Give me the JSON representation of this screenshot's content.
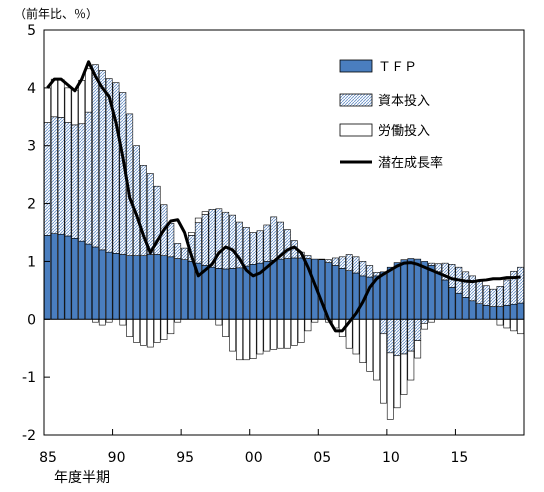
{
  "chart_data": {
    "type": "bar",
    "stacked": true,
    "unit_label": "（前年比、％）",
    "xlabel": "年度半期",
    "ylim": [
      -2,
      5
    ],
    "y_ticks": [
      "5",
      "4",
      "3",
      "2",
      "1",
      "0",
      "-1",
      "-2"
    ],
    "x_ticks": [
      {
        "label": "85",
        "period": 0
      },
      {
        "label": "90",
        "period": 10
      },
      {
        "label": "95",
        "period": 20
      },
      {
        "label": "00",
        "period": 30
      },
      {
        "label": "05",
        "period": 40
      },
      {
        "label": "10",
        "period": 50
      },
      {
        "label": "15",
        "period": 60
      }
    ],
    "legend_position": "top-right",
    "colors": {
      "tfp": "#4a7ebf",
      "capital": "#b8cde6",
      "labor": "#ffffff",
      "line": "#000000"
    },
    "series": [
      {
        "name": "ＴＦＰ",
        "key": "tfp",
        "values": [
          1.45,
          1.48,
          1.47,
          1.44,
          1.4,
          1.35,
          1.3,
          1.25,
          1.2,
          1.16,
          1.14,
          1.12,
          1.1,
          1.1,
          1.1,
          1.12,
          1.12,
          1.1,
          1.08,
          1.05,
          1.03,
          1.0,
          0.97,
          0.93,
          0.9,
          0.88,
          0.87,
          0.88,
          0.89,
          0.92,
          0.95,
          0.97,
          1.0,
          1.02,
          1.04,
          1.05,
          1.06,
          1.06,
          1.05,
          1.04,
          1.03,
          0.98,
          0.93,
          0.88,
          0.84,
          0.8,
          0.75,
          0.73,
          0.75,
          0.82,
          0.9,
          0.98,
          1.03,
          1.05,
          1.04,
          1.0,
          0.93,
          0.82,
          0.68,
          0.55,
          0.45,
          0.38,
          0.32,
          0.27,
          0.24,
          0.22,
          0.22,
          0.24,
          0.26,
          0.28
        ]
      },
      {
        "name": "資本投入",
        "key": "capital",
        "values": [
          1.95,
          2.02,
          2.02,
          1.96,
          1.96,
          2.03,
          2.28,
          3.15,
          3.1,
          3.0,
          2.95,
          2.8,
          2.45,
          1.9,
          1.56,
          1.4,
          1.18,
          0.88,
          0.58,
          0.26,
          0.2,
          0.45,
          0.7,
          0.88,
          1.0,
          1.03,
          0.98,
          0.92,
          0.79,
          0.67,
          0.55,
          0.56,
          0.63,
          0.75,
          0.64,
          0.5,
          0.3,
          0.1,
          0.05,
          0.0,
          0.01,
          0.05,
          0.13,
          0.2,
          0.28,
          0.28,
          0.25,
          0.2,
          0.06,
          -0.25,
          -0.58,
          -0.63,
          -0.6,
          -0.55,
          -0.37,
          -0.07,
          0.04,
          0.14,
          0.29,
          0.4,
          0.45,
          0.44,
          0.43,
          0.4,
          0.34,
          0.3,
          0.35,
          0.44,
          0.57,
          0.62
        ]
      },
      {
        "name": "労働投入",
        "key": "labor",
        "values": [
          0.6,
          0.65,
          0.65,
          0.6,
          0.6,
          0.75,
          0.75,
          -0.05,
          -0.1,
          -0.05,
          0.0,
          -0.1,
          -0.3,
          -0.4,
          -0.45,
          -0.48,
          -0.4,
          -0.35,
          -0.25,
          -0.05,
          0.0,
          0.05,
          0.08,
          0.05,
          0.0,
          -0.1,
          -0.3,
          -0.55,
          -0.7,
          -0.7,
          -0.68,
          -0.6,
          -0.55,
          -0.52,
          -0.5,
          -0.5,
          -0.45,
          -0.4,
          -0.2,
          -0.05,
          0.0,
          -0.05,
          -0.15,
          -0.3,
          -0.5,
          -0.6,
          -0.75,
          -0.9,
          -1.05,
          -1.2,
          -1.15,
          -0.9,
          -0.7,
          -0.5,
          -0.3,
          -0.1,
          -0.05,
          0.0,
          0.0,
          0.0,
          0.0,
          0.0,
          0.0,
          0.0,
          0.0,
          0.0,
          -0.1,
          -0.15,
          -0.2,
          -0.25
        ]
      }
    ],
    "line": {
      "name": "潜在成長率",
      "values": [
        4.0,
        4.15,
        4.15,
        4.05,
        3.95,
        4.15,
        4.45,
        4.2,
        4.0,
        3.85,
        3.4,
        2.8,
        2.1,
        1.8,
        1.45,
        1.15,
        1.35,
        1.55,
        1.7,
        1.72,
        1.5,
        1.1,
        0.75,
        0.85,
        0.95,
        1.15,
        1.25,
        1.2,
        1.05,
        0.85,
        0.75,
        0.8,
        0.9,
        1.0,
        1.1,
        1.2,
        1.25,
        1.15,
        0.9,
        0.6,
        0.3,
        0.0,
        -0.2,
        -0.2,
        -0.05,
        0.1,
        0.3,
        0.55,
        0.7,
        0.78,
        0.85,
        0.92,
        0.97,
        0.98,
        0.95,
        0.9,
        0.85,
        0.8,
        0.75,
        0.7,
        0.68,
        0.66,
        0.65,
        0.67,
        0.68,
        0.7,
        0.7,
        0.72,
        0.72,
        0.73
      ]
    }
  }
}
